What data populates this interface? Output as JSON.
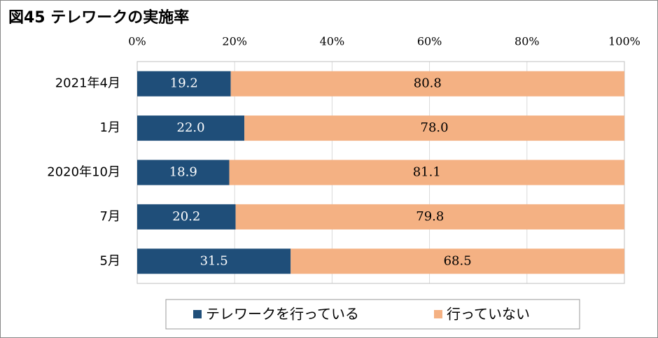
{
  "chart_data": {
    "type": "stacked-bar-horizontal",
    "title": "図45 テレワークの実施率",
    "categories": [
      "2021年4月",
      "1月",
      "2020年10月",
      "7月",
      "5月"
    ],
    "series": [
      {
        "name": "テレワークを行っている",
        "color": "#1f4e79",
        "values": [
          19.2,
          22.0,
          18.9,
          20.2,
          31.5
        ],
        "value_labels": [
          "19.2",
          "22.0",
          "18.9",
          "20.2",
          "31.5"
        ]
      },
      {
        "name": "行っていない",
        "color": "#f4b183",
        "values": [
          80.8,
          78.0,
          81.1,
          79.8,
          68.5
        ],
        "value_labels": [
          "80.8",
          "78.0",
          "81.1",
          "79.8",
          "68.5"
        ]
      }
    ],
    "xlim": [
      0,
      100
    ],
    "xticks": [
      {
        "value": 0,
        "label": "0%"
      },
      {
        "value": 20,
        "label": "20%"
      },
      {
        "value": 40,
        "label": "40%"
      },
      {
        "value": 60,
        "label": "60%"
      },
      {
        "value": 80,
        "label": "80%"
      },
      {
        "value": 100,
        "label": "100%"
      }
    ],
    "grid": true
  }
}
